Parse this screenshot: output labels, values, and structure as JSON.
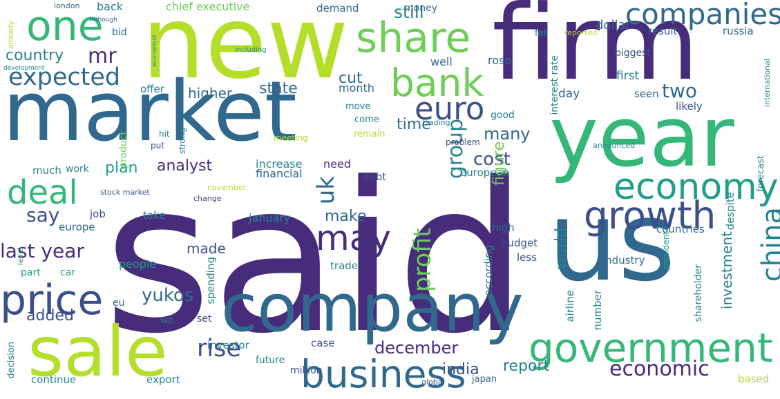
{
  "palette": {
    "purple": "#462c7a",
    "indigo": "#3b4f8a",
    "blue": "#31688e",
    "teal": "#26828e",
    "cyan": "#1f9e89",
    "green": "#35b779",
    "lime": "#6ece58",
    "yellow": "#b5de2b",
    "background": "#ffffff"
  },
  "words": [
    {
      "text": "said"
    },
    {
      "text": "new"
    },
    {
      "text": "firm"
    },
    {
      "text": "market"
    },
    {
      "text": "year"
    },
    {
      "text": "us"
    },
    {
      "text": "company"
    },
    {
      "text": "sale"
    },
    {
      "text": "one"
    },
    {
      "text": "share"
    },
    {
      "text": "companies"
    },
    {
      "text": "bank"
    },
    {
      "text": "euro"
    },
    {
      "text": "deal"
    },
    {
      "text": "expected"
    },
    {
      "text": "economy"
    },
    {
      "text": "growth"
    },
    {
      "text": "government"
    },
    {
      "text": "business"
    },
    {
      "text": "price"
    },
    {
      "text": "may"
    },
    {
      "text": "profit"
    },
    {
      "text": "china"
    },
    {
      "text": "uk"
    },
    {
      "text": "last year"
    },
    {
      "text": "say"
    },
    {
      "text": "mr"
    },
    {
      "text": "country"
    },
    {
      "text": "rise"
    },
    {
      "text": "economic"
    },
    {
      "text": "two"
    },
    {
      "text": "group"
    },
    {
      "text": "analyst"
    },
    {
      "text": "plan"
    },
    {
      "text": "cost"
    },
    {
      "text": "yukos"
    },
    {
      "text": "december"
    },
    {
      "text": "india"
    },
    {
      "text": "report"
    },
    {
      "text": "world"
    },
    {
      "text": "investment"
    },
    {
      "text": "figure"
    },
    {
      "text": "many"
    },
    {
      "text": "still"
    },
    {
      "text": "cut"
    },
    {
      "text": "state"
    },
    {
      "text": "time"
    },
    {
      "text": "added"
    },
    {
      "text": "make"
    },
    {
      "text": "made"
    },
    {
      "text": "dollar"
    },
    {
      "text": "result"
    },
    {
      "text": "russia"
    },
    {
      "text": "chief executive"
    },
    {
      "text": "first"
    },
    {
      "text": "increase"
    },
    {
      "text": "need"
    },
    {
      "text": "financial"
    },
    {
      "text": "higher"
    },
    {
      "text": "month"
    },
    {
      "text": "back"
    },
    {
      "text": "money"
    },
    {
      "text": "demand"
    },
    {
      "text": "well"
    },
    {
      "text": "rose"
    },
    {
      "text": "day"
    },
    {
      "text": "seen"
    },
    {
      "text": "good"
    },
    {
      "text": "offer"
    },
    {
      "text": "fall"
    },
    {
      "text": "reported"
    },
    {
      "text": "biggest"
    },
    {
      "text": "interest rate"
    },
    {
      "text": "likely"
    },
    {
      "text": "european"
    },
    {
      "text": "debt"
    },
    {
      "text": "january"
    },
    {
      "text": "people"
    },
    {
      "text": "europe"
    },
    {
      "text": "job"
    },
    {
      "text": "take"
    },
    {
      "text": "industry"
    },
    {
      "text": "high"
    },
    {
      "text": "budget"
    },
    {
      "text": "according"
    },
    {
      "text": "less"
    },
    {
      "text": "trade"
    },
    {
      "text": "spending"
    },
    {
      "text": "number"
    },
    {
      "text": "airline"
    },
    {
      "text": "shareholder"
    },
    {
      "text": "countries"
    },
    {
      "text": "forecast"
    },
    {
      "text": "despite"
    },
    {
      "text": "investor"
    },
    {
      "text": "case"
    },
    {
      "text": "million"
    },
    {
      "text": "future"
    },
    {
      "text": "continue"
    },
    {
      "text": "export"
    },
    {
      "text": "japan"
    },
    {
      "text": "global"
    },
    {
      "text": "based"
    },
    {
      "text": "part"
    },
    {
      "text": "car"
    },
    {
      "text": "work"
    },
    {
      "text": "much"
    },
    {
      "text": "stock market"
    },
    {
      "text": "change"
    },
    {
      "text": "november"
    },
    {
      "text": "meeting"
    },
    {
      "text": "remain"
    },
    {
      "text": "come"
    },
    {
      "text": "move"
    },
    {
      "text": "product"
    },
    {
      "text": "hit"
    },
    {
      "text": "strong"
    },
    {
      "text": "put"
    },
    {
      "text": "london"
    },
    {
      "text": "bid"
    },
    {
      "text": "already"
    },
    {
      "text": "development"
    },
    {
      "text": "although"
    },
    {
      "text": "economist"
    },
    {
      "text": "including"
    },
    {
      "text": "eu"
    },
    {
      "text": "set"
    },
    {
      "text": "decision"
    },
    {
      "text": "level"
    },
    {
      "text": "president"
    },
    {
      "text": "announced"
    },
    {
      "text": "international"
    },
    {
      "text": "problem"
    },
    {
      "text": "trading"
    },
    {
      "text": "set"
    }
  ]
}
